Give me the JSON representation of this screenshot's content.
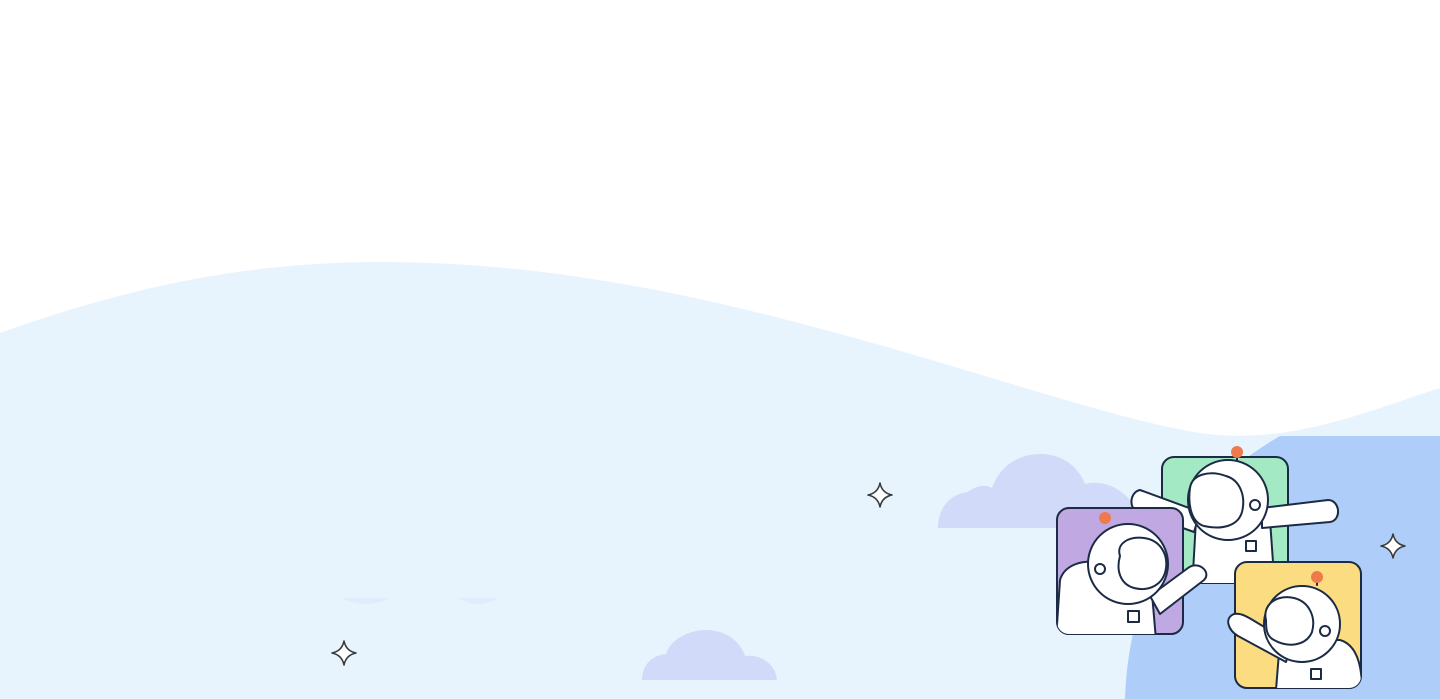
{
  "colors": {
    "background": "#ffffff",
    "wave": "#e8f4fd",
    "panel": "#aecdf9",
    "cloud": "#d1daf8",
    "frame_purple": "#c0a8e2",
    "frame_green": "#a3e9c3",
    "frame_yellow": "#fcdc80",
    "outline": "#1c2b45",
    "antenna": "#ef7a4b",
    "suit": "#ffffff"
  },
  "illustration": {
    "characters": [
      {
        "name": "astronaut-purple",
        "frame_color": "frame_purple"
      },
      {
        "name": "astronaut-green",
        "frame_color": "frame_green"
      },
      {
        "name": "astronaut-yellow",
        "frame_color": "frame_yellow"
      }
    ],
    "sparkles": 3,
    "clouds": 2
  }
}
